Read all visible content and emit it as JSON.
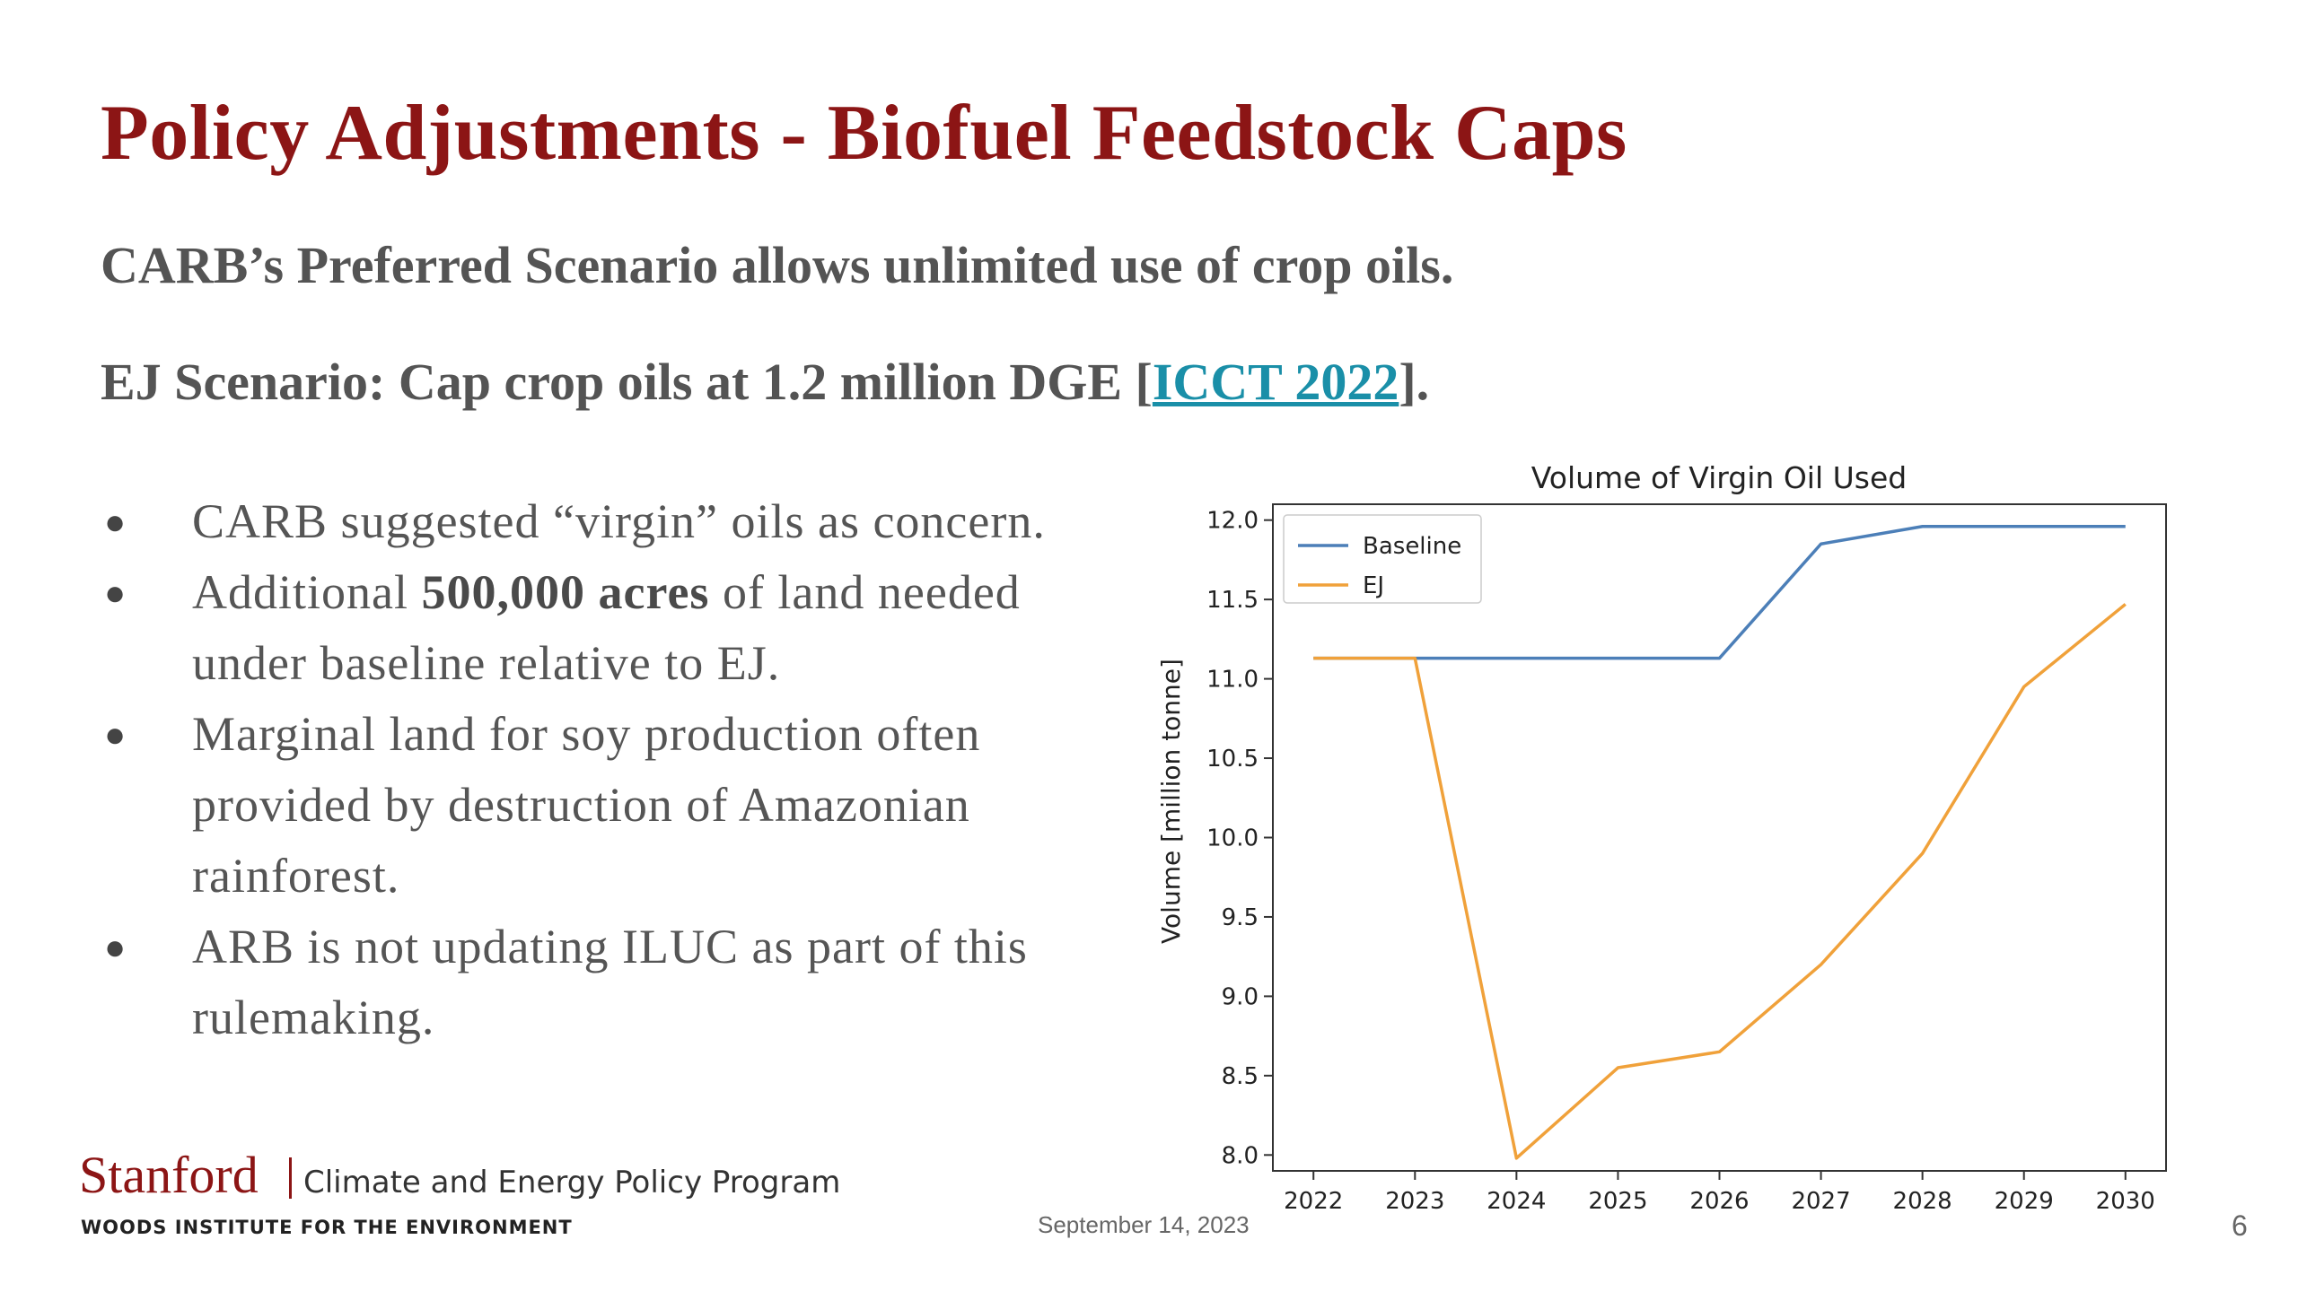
{
  "slide": {
    "title": "Policy Adjustments - Biofuel Feedstock Caps",
    "subtitle_1": "CARB’s Preferred Scenario allows unlimited use of crop oils.",
    "subtitle_2_prefix": "EJ Scenario: Cap crop oils at 1.2 million DGE [",
    "subtitle_2_link": "ICCT 2022",
    "subtitle_2_suffix": "].",
    "bullets": [
      {
        "text": "CARB suggested “virgin” oils as concern."
      },
      {
        "pre": "Additional ",
        "bold": "500,000 acres",
        "post": " of land needed under baseline relative to EJ."
      },
      {
        "text": "Marginal land for soy production often provided by destruction of Amazonian rainforest."
      },
      {
        "text": "ARB is not updating ILUC as part of this rulemaking."
      }
    ],
    "bullet_glyph": "●"
  },
  "chart_data": {
    "type": "line",
    "title": "Volume of Virgin Oil Used",
    "xlabel": "",
    "ylabel": "Volume [million tonne]",
    "x": [
      2022,
      2023,
      2024,
      2025,
      2026,
      2027,
      2028,
      2029,
      2030
    ],
    "xticks": [
      "2022",
      "2023",
      "2024",
      "2025",
      "2026",
      "2027",
      "2028",
      "2029",
      "2030"
    ],
    "yticks": [
      "8.0",
      "8.5",
      "9.0",
      "9.5",
      "10.0",
      "10.5",
      "11.0",
      "11.5",
      "12.0"
    ],
    "xlim": [
      2021.6,
      2030.4
    ],
    "ylim": [
      7.9,
      12.1
    ],
    "grid": false,
    "legend_position": "upper-left",
    "series": [
      {
        "name": "Baseline",
        "color": "#4c7fb8",
        "values": [
          11.13,
          11.13,
          11.13,
          11.13,
          11.13,
          11.85,
          11.96,
          11.96,
          11.96
        ]
      },
      {
        "name": "EJ",
        "color": "#f0a13a",
        "values": [
          11.13,
          11.13,
          7.98,
          8.55,
          8.65,
          9.2,
          9.9,
          10.95,
          11.47
        ]
      }
    ]
  },
  "footer": {
    "logo_name": "Stanford",
    "logo_program": "Climate and Energy Policy Program",
    "logo_org": "WOODS INSTITUTE FOR THE ENVIRONMENT",
    "date": "September 14, 2023",
    "page_number": "6"
  }
}
